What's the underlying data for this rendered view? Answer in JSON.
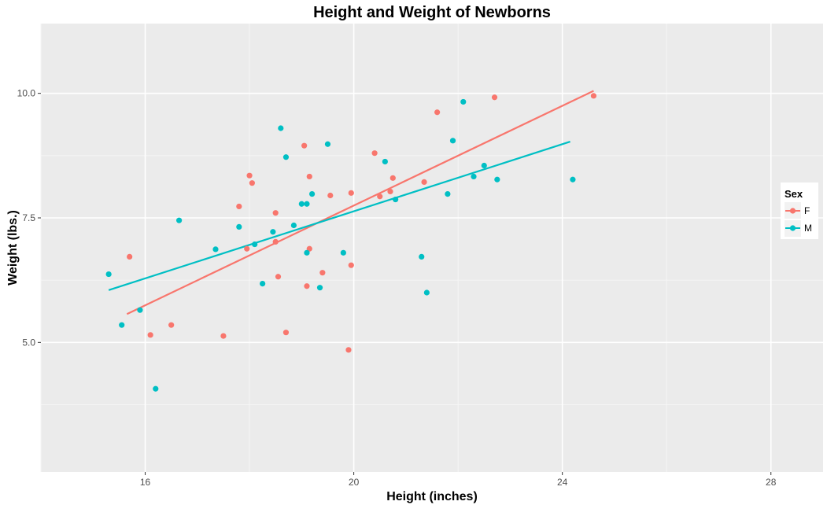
{
  "chart_data": {
    "type": "scatter",
    "title": "Height and Weight of Newborns",
    "xlabel": "Height (inches)",
    "ylabel": "Weight (lbs.)",
    "xlim": [
      14,
      29
    ],
    "ylim": [
      2.4,
      11.4
    ],
    "x_ticks": [
      16,
      20,
      24,
      28
    ],
    "x_tick_labels": [
      "16",
      "20",
      "24",
      "28"
    ],
    "x_minor_ticks": [
      14,
      18,
      22,
      26
    ],
    "y_ticks": [
      5.0,
      7.5,
      10.0
    ],
    "y_tick_labels": [
      "5.0",
      "7.5",
      "10.0"
    ],
    "y_minor_ticks": [
      3.75,
      6.25,
      8.75
    ],
    "grid": true,
    "legend": {
      "title": "Sex",
      "position": "right"
    },
    "series": [
      {
        "name": "F",
        "color": "#F8766D",
        "points": [
          [
            15.7,
            6.72
          ],
          [
            16.1,
            5.15
          ],
          [
            16.5,
            5.35
          ],
          [
            17.5,
            5.13
          ],
          [
            17.8,
            7.73
          ],
          [
            17.95,
            6.88
          ],
          [
            18.0,
            8.35
          ],
          [
            18.05,
            8.2
          ],
          [
            18.5,
            7.6
          ],
          [
            18.5,
            7.02
          ],
          [
            18.55,
            6.32
          ],
          [
            18.7,
            5.2
          ],
          [
            19.05,
            8.95
          ],
          [
            19.1,
            6.13
          ],
          [
            19.15,
            8.33
          ],
          [
            19.15,
            6.88
          ],
          [
            19.4,
            6.4
          ],
          [
            19.55,
            7.95
          ],
          [
            19.9,
            4.85
          ],
          [
            19.95,
            6.55
          ],
          [
            19.95,
            8.0
          ],
          [
            20.4,
            8.8
          ],
          [
            20.5,
            7.93
          ],
          [
            20.7,
            8.03
          ],
          [
            20.75,
            8.3
          ],
          [
            21.35,
            8.22
          ],
          [
            21.6,
            9.62
          ],
          [
            22.7,
            9.92
          ],
          [
            24.6,
            9.95
          ]
        ],
        "trend": [
          [
            15.65,
            5.57
          ],
          [
            24.6,
            10.05
          ]
        ]
      },
      {
        "name": "M",
        "color": "#00BFC4",
        "points": [
          [
            15.3,
            6.37
          ],
          [
            15.55,
            5.35
          ],
          [
            15.9,
            5.65
          ],
          [
            16.2,
            4.07
          ],
          [
            16.65,
            7.45
          ],
          [
            17.35,
            6.87
          ],
          [
            17.8,
            7.32
          ],
          [
            18.1,
            6.97
          ],
          [
            18.25,
            6.18
          ],
          [
            18.45,
            7.22
          ],
          [
            18.6,
            9.3
          ],
          [
            18.7,
            8.72
          ],
          [
            18.85,
            7.35
          ],
          [
            19.0,
            7.78
          ],
          [
            19.1,
            7.78
          ],
          [
            19.1,
            6.8
          ],
          [
            19.2,
            7.98
          ],
          [
            19.35,
            6.1
          ],
          [
            19.5,
            8.98
          ],
          [
            19.8,
            6.8
          ],
          [
            20.6,
            8.63
          ],
          [
            20.8,
            7.87
          ],
          [
            21.3,
            6.72
          ],
          [
            21.4,
            6.0
          ],
          [
            21.8,
            7.98
          ],
          [
            21.9,
            9.05
          ],
          [
            22.1,
            9.83
          ],
          [
            22.3,
            8.33
          ],
          [
            22.5,
            8.55
          ],
          [
            22.75,
            8.27
          ],
          [
            24.2,
            8.27
          ]
        ],
        "trend": [
          [
            15.3,
            6.05
          ],
          [
            24.15,
            9.03
          ]
        ]
      }
    ]
  }
}
